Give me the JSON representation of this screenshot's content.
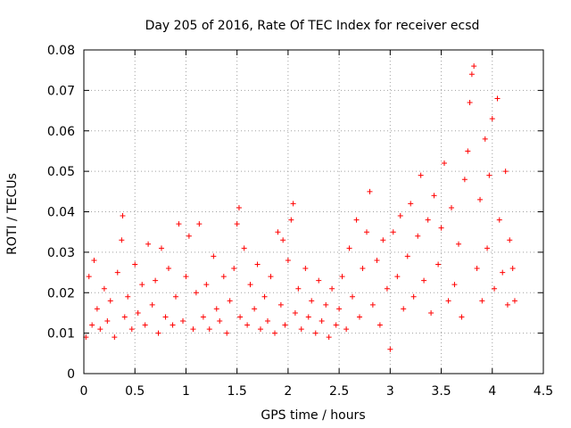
{
  "chart_data": {
    "type": "scatter",
    "title": "Day 205 of 2016, Rate Of TEC Index for receiver ecsd",
    "xlabel": "GPS time / hours",
    "ylabel": "ROTI / TECUs",
    "xlim": [
      0,
      4.5
    ],
    "ylim": [
      0,
      0.08
    ],
    "xticks": [
      0,
      0.5,
      1,
      1.5,
      2,
      2.5,
      3,
      3.5,
      4,
      4.5
    ],
    "xtick_labels": [
      "0",
      "0.5",
      "1",
      "1.5",
      "2",
      "2.5",
      "3",
      "3.5",
      "4",
      "4.5"
    ],
    "yticks": [
      0,
      0.01,
      0.02,
      0.03,
      0.04,
      0.05,
      0.06,
      0.07,
      0.08
    ],
    "ytick_labels": [
      "0",
      "0.01",
      "0.02",
      "0.03",
      "0.04",
      "0.05",
      "0.06",
      "0.07",
      "0.08"
    ],
    "grid": true,
    "marker": "plus",
    "color": "#ff0000",
    "series": [
      {
        "name": "ROTI",
        "x": [
          0.02,
          0.05,
          0.08,
          0.1,
          0.13,
          0.16,
          0.2,
          0.23,
          0.26,
          0.3,
          0.33,
          0.37,
          0.38,
          0.4,
          0.43,
          0.47,
          0.5,
          0.53,
          0.57,
          0.6,
          0.63,
          0.67,
          0.7,
          0.73,
          0.76,
          0.8,
          0.83,
          0.87,
          0.9,
          0.93,
          0.97,
          1.0,
          1.03,
          1.07,
          1.1,
          1.13,
          1.17,
          1.2,
          1.23,
          1.27,
          1.3,
          1.33,
          1.37,
          1.4,
          1.43,
          1.47,
          1.5,
          1.52,
          1.53,
          1.57,
          1.6,
          1.63,
          1.67,
          1.7,
          1.73,
          1.77,
          1.8,
          1.83,
          1.87,
          1.9,
          1.93,
          1.95,
          1.97,
          2.0,
          2.03,
          2.05,
          2.07,
          2.1,
          2.13,
          2.17,
          2.2,
          2.23,
          2.27,
          2.3,
          2.33,
          2.37,
          2.4,
          2.43,
          2.47,
          2.5,
          2.53,
          2.57,
          2.6,
          2.63,
          2.67,
          2.7,
          2.73,
          2.77,
          2.8,
          2.83,
          2.87,
          2.9,
          2.93,
          2.97,
          3.0,
          3.03,
          3.07,
          3.1,
          3.13,
          3.17,
          3.2,
          3.23,
          3.27,
          3.3,
          3.33,
          3.37,
          3.4,
          3.43,
          3.47,
          3.5,
          3.53,
          3.57,
          3.6,
          3.63,
          3.67,
          3.7,
          3.73,
          3.76,
          3.78,
          3.8,
          3.82,
          3.85,
          3.88,
          3.9,
          3.93,
          3.95,
          3.97,
          4.0,
          4.02,
          4.05,
          4.07,
          4.1,
          4.13,
          4.15,
          4.17,
          4.2,
          4.22
        ],
        "y": [
          0.009,
          0.024,
          0.012,
          0.028,
          0.016,
          0.011,
          0.021,
          0.013,
          0.018,
          0.009,
          0.025,
          0.033,
          0.039,
          0.014,
          0.019,
          0.011,
          0.027,
          0.015,
          0.022,
          0.012,
          0.032,
          0.017,
          0.023,
          0.01,
          0.031,
          0.014,
          0.026,
          0.012,
          0.019,
          0.037,
          0.013,
          0.024,
          0.034,
          0.011,
          0.02,
          0.037,
          0.014,
          0.022,
          0.011,
          0.029,
          0.016,
          0.013,
          0.024,
          0.01,
          0.018,
          0.026,
          0.037,
          0.041,
          0.014,
          0.031,
          0.012,
          0.022,
          0.016,
          0.027,
          0.011,
          0.019,
          0.013,
          0.024,
          0.01,
          0.035,
          0.017,
          0.033,
          0.012,
          0.028,
          0.038,
          0.042,
          0.015,
          0.021,
          0.011,
          0.026,
          0.014,
          0.018,
          0.01,
          0.023,
          0.013,
          0.017,
          0.009,
          0.021,
          0.012,
          0.016,
          0.024,
          0.011,
          0.031,
          0.019,
          0.038,
          0.014,
          0.026,
          0.035,
          0.045,
          0.017,
          0.028,
          0.012,
          0.033,
          0.021,
          0.006,
          0.035,
          0.024,
          0.039,
          0.016,
          0.029,
          0.042,
          0.019,
          0.034,
          0.049,
          0.023,
          0.038,
          0.015,
          0.044,
          0.027,
          0.036,
          0.052,
          0.018,
          0.041,
          0.022,
          0.032,
          0.014,
          0.048,
          0.055,
          0.067,
          0.074,
          0.076,
          0.026,
          0.043,
          0.018,
          0.058,
          0.031,
          0.049,
          0.063,
          0.021,
          0.068,
          0.038,
          0.025,
          0.05,
          0.017,
          0.033,
          0.026,
          0.018
        ]
      }
    ]
  }
}
